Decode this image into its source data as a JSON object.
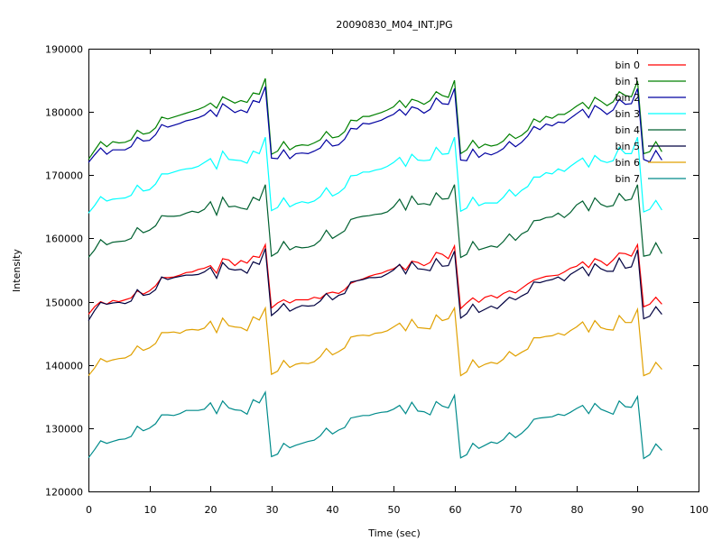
{
  "chart_data": {
    "type": "line",
    "title": "20090830_M04_INT.JPG",
    "xlabel": "Time (sec)",
    "ylabel": "Intensity",
    "xlim": [
      0,
      100
    ],
    "ylim": [
      120000,
      190000
    ],
    "xticks": [
      0,
      10,
      20,
      30,
      40,
      50,
      60,
      70,
      80,
      90,
      100
    ],
    "yticks": [
      120000,
      130000,
      140000,
      150000,
      160000,
      170000,
      180000,
      190000
    ],
    "x_start": 0,
    "x_step": 1,
    "grid": false,
    "legend_position": "top-right",
    "series": [
      {
        "name": "bin 0",
        "color": "#ff0000",
        "values": [
          148000,
          149200,
          150000,
          149600,
          150200,
          150000,
          150300,
          150600,
          151700,
          151200,
          151700,
          152500,
          153800,
          153800,
          153900,
          154200,
          154600,
          154700,
          155100,
          155300,
          155700,
          154500,
          156800,
          156600,
          155700,
          156500,
          156100,
          157200,
          157000,
          159000,
          149000,
          149800,
          150300,
          149800,
          150300,
          150300,
          150300,
          150700,
          150500,
          151300,
          151500,
          151300,
          151900,
          152900,
          153300,
          153600,
          154000,
          154300,
          154500,
          154900,
          155200,
          155800,
          155000,
          156400,
          156200,
          155700,
          156200,
          157800,
          157500,
          156800,
          158800,
          148900,
          149800,
          150600,
          149900,
          150700,
          151000,
          150600,
          151300,
          151700,
          151400,
          152100,
          152800,
          153400,
          153700,
          154000,
          154100,
          154200,
          154700,
          155300,
          155600,
          156300,
          155400,
          156800,
          156400,
          155700,
          156600,
          157700,
          157600,
          157200,
          159000,
          149200,
          149600,
          150700,
          149600
        ]
      },
      {
        "name": "bin 1",
        "color": "#008000",
        "values": [
          172500,
          173900,
          175300,
          174500,
          175300,
          175100,
          175200,
          175600,
          177100,
          176500,
          176700,
          177500,
          179200,
          178900,
          179200,
          179500,
          179800,
          180100,
          180400,
          180800,
          181400,
          180600,
          182400,
          181900,
          181400,
          181800,
          181500,
          183000,
          182800,
          185300,
          173300,
          173800,
          175300,
          174000,
          174600,
          174800,
          174700,
          175100,
          175600,
          176900,
          175900,
          176100,
          176900,
          178700,
          178600,
          179300,
          179300,
          179600,
          179900,
          180300,
          180800,
          181800,
          180700,
          182000,
          181700,
          181200,
          181800,
          183200,
          182600,
          182300,
          185000,
          173400,
          174000,
          175500,
          174300,
          174900,
          174600,
          174800,
          175400,
          176500,
          175800,
          176300,
          177100,
          178900,
          178400,
          179300,
          179000,
          179600,
          179600,
          180200,
          180900,
          181500,
          180500,
          182300,
          181700,
          181000,
          181600,
          183200,
          182600,
          182400,
          184900,
          173400,
          173700,
          175300,
          173700
        ]
      },
      {
        "name": "bin 2",
        "color": "#0000a0",
        "values": [
          172000,
          173200,
          174300,
          173300,
          174000,
          174000,
          174000,
          174500,
          176000,
          175400,
          175500,
          176400,
          178000,
          177600,
          177900,
          178200,
          178600,
          178800,
          179100,
          179500,
          180300,
          179300,
          181300,
          180600,
          179900,
          180300,
          179900,
          181800,
          181500,
          184000,
          172700,
          172600,
          174000,
          172600,
          173400,
          173500,
          173400,
          173800,
          174300,
          175600,
          174600,
          174800,
          175700,
          177400,
          177300,
          178200,
          178100,
          178400,
          178700,
          179200,
          179600,
          180400,
          179500,
          180800,
          180500,
          179800,
          180400,
          182200,
          181300,
          181200,
          183700,
          172400,
          172300,
          174100,
          172800,
          173500,
          173200,
          173600,
          174200,
          175300,
          174500,
          175200,
          176200,
          177700,
          177200,
          178100,
          177800,
          178400,
          178300,
          179000,
          179700,
          180400,
          179100,
          181000,
          180400,
          179600,
          180300,
          182000,
          181200,
          181300,
          183700,
          172500,
          172100,
          173900,
          172400
        ]
      },
      {
        "name": "bin 3",
        "color": "#00ffff",
        "values": [
          164000,
          165200,
          166600,
          165900,
          166200,
          166300,
          166400,
          166800,
          168400,
          167500,
          167700,
          168600,
          170200,
          170200,
          170500,
          170800,
          171000,
          171100,
          171400,
          172000,
          172600,
          171000,
          173800,
          172500,
          172400,
          172300,
          171900,
          173800,
          173400,
          176000,
          164400,
          164900,
          166400,
          165000,
          165500,
          165800,
          165600,
          165900,
          166600,
          168000,
          166700,
          167200,
          168000,
          169900,
          170000,
          170500,
          170500,
          170800,
          171000,
          171400,
          172000,
          172800,
          171400,
          173300,
          172400,
          172300,
          172400,
          174400,
          173300,
          173400,
          176000,
          164300,
          164800,
          166500,
          165200,
          165600,
          165600,
          165600,
          166500,
          167700,
          166700,
          167600,
          168200,
          169700,
          169700,
          170400,
          170200,
          171000,
          170600,
          171400,
          172100,
          172700,
          171300,
          173100,
          172300,
          172000,
          172300,
          174400,
          173400,
          173400,
          176000,
          164200,
          164600,
          166000,
          164500
        ]
      },
      {
        "name": "bin 4",
        "color": "#006030",
        "values": [
          157000,
          158200,
          159800,
          159000,
          159400,
          159500,
          159600,
          160000,
          161700,
          160900,
          161300,
          162000,
          163600,
          163500,
          163500,
          163600,
          164000,
          164300,
          164100,
          164600,
          165800,
          163700,
          166500,
          165000,
          165100,
          164800,
          164600,
          166500,
          166000,
          168500,
          157200,
          157800,
          159500,
          158200,
          158700,
          158500,
          158600,
          158900,
          159700,
          161300,
          160000,
          160600,
          161200,
          163000,
          163300,
          163500,
          163600,
          163800,
          163900,
          164200,
          165000,
          166200,
          164500,
          166700,
          165400,
          165500,
          165300,
          167200,
          166200,
          166300,
          168500,
          157000,
          157500,
          159500,
          158200,
          158500,
          158800,
          158600,
          159500,
          160700,
          159700,
          160700,
          161200,
          162800,
          162900,
          163300,
          163400,
          164000,
          163300,
          164100,
          165300,
          165900,
          164400,
          166400,
          165400,
          165000,
          165200,
          167100,
          166000,
          166200,
          168500,
          157200,
          157400,
          159300,
          157600
        ]
      },
      {
        "name": "bin 5",
        "color": "#000040",
        "values": [
          147000,
          148600,
          149900,
          149600,
          149800,
          149900,
          149700,
          150100,
          151900,
          151000,
          151200,
          151900,
          153900,
          153500,
          153800,
          154000,
          154200,
          154200,
          154300,
          154700,
          155400,
          153700,
          156200,
          155200,
          155000,
          155100,
          154500,
          156300,
          155900,
          158400,
          147800,
          148600,
          149700,
          148500,
          149000,
          149400,
          149300,
          149400,
          150100,
          151300,
          150300,
          151000,
          151300,
          153100,
          153300,
          153500,
          153800,
          153800,
          153900,
          154400,
          155000,
          155900,
          154400,
          156300,
          155200,
          155100,
          154900,
          156800,
          155600,
          155700,
          158000,
          147400,
          148100,
          149600,
          148300,
          148800,
          149300,
          148900,
          149800,
          150700,
          150300,
          150900,
          151400,
          153100,
          153000,
          153300,
          153500,
          153900,
          153300,
          154300,
          154900,
          155500,
          154100,
          156000,
          155200,
          154800,
          154800,
          156900,
          155300,
          155500,
          158200,
          147300,
          147700,
          149200,
          148000
        ]
      },
      {
        "name": "bin 6",
        "color": "#e0a000",
        "values": [
          138300,
          139500,
          141000,
          140500,
          140800,
          141000,
          141100,
          141600,
          143000,
          142300,
          142700,
          143400,
          145100,
          145100,
          145200,
          145000,
          145500,
          145600,
          145500,
          145800,
          146900,
          145100,
          147400,
          146200,
          146000,
          145900,
          145400,
          147600,
          147100,
          149000,
          138500,
          139000,
          140700,
          139600,
          140100,
          140300,
          140200,
          140500,
          141300,
          142600,
          141600,
          142100,
          142700,
          144400,
          144600,
          144700,
          144600,
          145000,
          145100,
          145400,
          146000,
          146600,
          145400,
          147200,
          145900,
          145800,
          145700,
          147900,
          147000,
          147300,
          149000,
          138300,
          138900,
          140800,
          139600,
          140100,
          140400,
          140200,
          140900,
          142100,
          141400,
          142000,
          142500,
          144300,
          144300,
          144500,
          144600,
          145000,
          144700,
          145400,
          146000,
          146800,
          145200,
          147000,
          145900,
          145600,
          145500,
          147800,
          146700,
          146700,
          148800,
          138300,
          138700,
          140400,
          139300
        ]
      },
      {
        "name": "bin 7",
        "color": "#008b8b",
        "values": [
          125300,
          126600,
          128000,
          127600,
          127900,
          128200,
          128300,
          128700,
          130300,
          129600,
          130000,
          130700,
          132100,
          132100,
          132000,
          132300,
          132800,
          132800,
          132800,
          133000,
          134000,
          132300,
          134300,
          133200,
          132900,
          132800,
          132200,
          134500,
          134000,
          135700,
          125500,
          125900,
          127600,
          126900,
          127300,
          127600,
          127900,
          128100,
          128800,
          130000,
          129100,
          129700,
          130100,
          131600,
          131800,
          132000,
          132000,
          132300,
          132500,
          132600,
          133000,
          133600,
          132300,
          134100,
          132700,
          132600,
          132100,
          134200,
          133500,
          133200,
          135200,
          125300,
          125800,
          127600,
          126800,
          127300,
          127800,
          127600,
          128200,
          129300,
          128500,
          129200,
          130100,
          131400,
          131600,
          131700,
          131800,
          132200,
          132000,
          132500,
          133100,
          133600,
          132300,
          133900,
          133000,
          132600,
          132200,
          134300,
          133400,
          133300,
          135000,
          125200,
          125800,
          127500,
          126500
        ]
      }
    ]
  }
}
